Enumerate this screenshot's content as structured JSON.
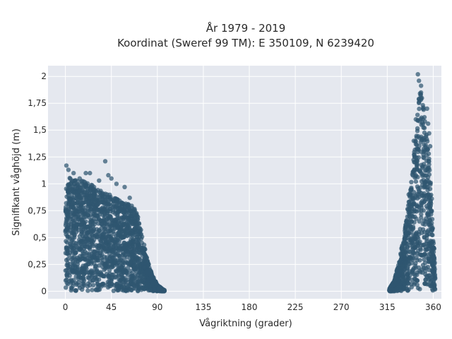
{
  "chart_data": {
    "type": "scatter",
    "title": "År 1979 - 2019",
    "subtitle": "Koordinat (Sweref 99 TM): E 350109, N 6239420",
    "xlabel": "Vågriktning (grader)",
    "ylabel": "Signifikant våghöjd (m)",
    "xlim": [
      -17,
      368
    ],
    "ylim": [
      -0.07,
      2.1
    ],
    "xticks": [
      0,
      45,
      90,
      135,
      180,
      225,
      270,
      315,
      360
    ],
    "xtick_labels": [
      "0",
      "45",
      "90",
      "135",
      "180",
      "225",
      "270",
      "315",
      "360"
    ],
    "yticks": [
      0,
      0.25,
      0.5,
      0.75,
      1,
      1.25,
      1.5,
      1.75,
      2
    ],
    "ytick_labels": [
      "0",
      "0,25",
      "0,5",
      "0,75",
      "1",
      "1,25",
      "1,5",
      "1,75",
      "2"
    ],
    "grid": true,
    "marker_color": "#2f5670",
    "plot_background": "#e5e8ef",
    "clusters": [
      {
        "x_range": [
          0,
          97
        ],
        "envelope": [
          [
            0,
            1.07
          ],
          [
            10,
            1.05
          ],
          [
            20,
            1.02
          ],
          [
            30,
            0.97
          ],
          [
            40,
            0.92
          ],
          [
            50,
            0.86
          ],
          [
            60,
            0.82
          ],
          [
            68,
            0.78
          ],
          [
            72,
            0.66
          ],
          [
            76,
            0.48
          ],
          [
            80,
            0.3
          ],
          [
            85,
            0.15
          ],
          [
            90,
            0.06
          ],
          [
            95,
            0.02
          ],
          [
            97,
            0.01
          ]
        ],
        "outliers": [
          [
            1,
            1.17
          ],
          [
            3,
            1.13
          ],
          [
            8,
            1.1
          ],
          [
            20,
            1.1
          ],
          [
            24,
            1.1
          ],
          [
            39,
            1.21
          ],
          [
            42,
            1.08
          ],
          [
            45,
            1.05
          ],
          [
            50,
            1.0
          ],
          [
            58,
            0.97
          ],
          [
            63,
            0.87
          ],
          [
            33,
            1.03
          ],
          [
            14,
            1.05
          ]
        ]
      },
      {
        "x_range": [
          317,
          362
        ],
        "envelope": [
          [
            317,
            0.02
          ],
          [
            322,
            0.1
          ],
          [
            327,
            0.3
          ],
          [
            332,
            0.55
          ],
          [
            336,
            0.85
          ],
          [
            340,
            1.15
          ],
          [
            344,
            1.55
          ],
          [
            347,
            2.02
          ],
          [
            350,
            1.8
          ],
          [
            352,
            1.6
          ],
          [
            355,
            1.35
          ],
          [
            358,
            1.0
          ],
          [
            360,
            0.55
          ],
          [
            362,
            0.2
          ]
        ],
        "outliers": [
          [
            345,
            2.02
          ],
          [
            346,
            1.96
          ],
          [
            348,
            1.85
          ],
          [
            350,
            1.7
          ],
          [
            354,
            1.7
          ],
          [
            355,
            1.56
          ],
          [
            356,
            1.47
          ],
          [
            357,
            1.35
          ],
          [
            343,
            1.6
          ],
          [
            341,
            1.4
          ],
          [
            336,
            0.9
          ],
          [
            333,
            0.62
          ],
          [
            329,
            0.4
          ]
        ]
      }
    ]
  }
}
